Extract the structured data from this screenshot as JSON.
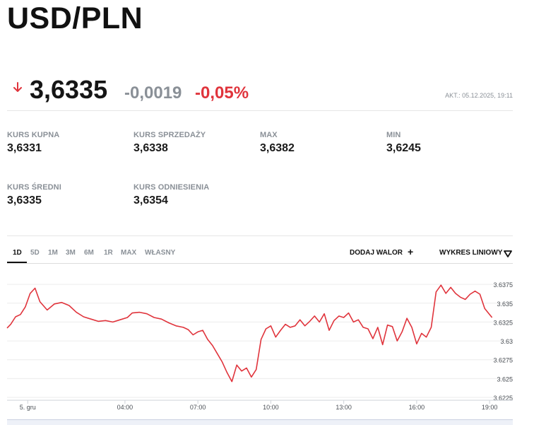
{
  "header": {
    "pair": "USD/PLN"
  },
  "quote": {
    "price": "3,6335",
    "change_abs": "-0,0019",
    "change_pct": "-0,05%",
    "updated": "AKT.: 05.12.2025, 19:11",
    "direction_icon": "arrow-down-icon",
    "down_color": "#e0343c"
  },
  "stats": [
    {
      "label": "KURS KUPNA",
      "value": "3,6331"
    },
    {
      "label": "KURS SPRZEDAŻY",
      "value": "3,6338"
    },
    {
      "label": "MAX",
      "value": "3,6382"
    },
    {
      "label": "MIN",
      "value": "3,6245"
    },
    {
      "label": "KURS ŚREDNI",
      "value": "3,6335"
    },
    {
      "label": "KURS ODNIESIENIA",
      "value": "3,6354"
    }
  ],
  "toolbar": {
    "ranges": [
      "1D",
      "5D",
      "1M",
      "3M",
      "6M",
      "1R",
      "MAX",
      "WŁASNY"
    ],
    "active_range": "1D",
    "add_asset": "DODAJ WALOR",
    "add_icon": "plus-icon",
    "chart_type": "WYKRES LINIOWY",
    "chart_type_icon": "triangle-down-icon"
  },
  "chart_data": {
    "type": "line",
    "x_tick_labels": [
      "5. gru",
      "04:00",
      "07:00",
      "10:00",
      "13:00",
      "16:00",
      "19:00"
    ],
    "x_ticks_hours": [
      0,
      4,
      7,
      10,
      13,
      16,
      19
    ],
    "xlim": [
      -0.85,
      19.2
    ],
    "y_tick_labels": [
      "3.6225",
      "3.625",
      "3.6275",
      "3.63",
      "3.6325",
      "3.635",
      "3.6375"
    ],
    "y_ticks": [
      3.6225,
      3.625,
      3.6275,
      3.63,
      3.6325,
      3.635,
      3.6375
    ],
    "ylim": [
      3.6225,
      3.6377
    ],
    "grid": true,
    "line_color": "#e0343c",
    "series": [
      {
        "x": [
          -0.85,
          -0.7,
          -0.5,
          -0.3,
          -0.1,
          0.1,
          0.3,
          0.5,
          0.8,
          1.1,
          1.4,
          1.7,
          2.0,
          2.3,
          2.6,
          2.9,
          3.2,
          3.5,
          3.8,
          4.1,
          4.3,
          4.6,
          4.9,
          5.2,
          5.5,
          5.8,
          6.1,
          6.4,
          6.6,
          6.8,
          7.0,
          7.2,
          7.4,
          7.6,
          7.8,
          8.0,
          8.2,
          8.4,
          8.6,
          8.8,
          9.0,
          9.2,
          9.4,
          9.6,
          9.8,
          10.0,
          10.2,
          10.4,
          10.6,
          10.8,
          11.0,
          11.2,
          11.4,
          11.6,
          11.8,
          12.0,
          12.2,
          12.4,
          12.6,
          12.8,
          13.0,
          13.2,
          13.4,
          13.6,
          13.8,
          14.0,
          14.2,
          14.4,
          14.6,
          14.8,
          15.0,
          15.2,
          15.4,
          15.6,
          15.8,
          16.0,
          16.2,
          16.4,
          16.6,
          16.8,
          17.0,
          17.2,
          17.4,
          17.6,
          17.8,
          18.0,
          18.2,
          18.4,
          18.6,
          18.8,
          19.0,
          19.1
        ],
        "y": [
          3.6317,
          3.6322,
          3.6332,
          3.6335,
          3.6345,
          3.6363,
          3.637,
          3.6352,
          3.6341,
          3.6349,
          3.6351,
          3.6347,
          3.6338,
          3.6332,
          3.6329,
          3.6326,
          3.6327,
          3.6325,
          3.6328,
          3.6331,
          3.6337,
          3.6338,
          3.6336,
          3.6331,
          3.6329,
          3.6324,
          3.632,
          3.6318,
          3.6315,
          3.6308,
          3.6312,
          3.6314,
          3.6302,
          3.6294,
          3.6283,
          3.6272,
          3.6258,
          3.6246,
          3.6268,
          3.626,
          3.6264,
          3.6252,
          3.6262,
          3.6302,
          3.6316,
          3.632,
          3.6305,
          3.6314,
          3.6322,
          3.6318,
          3.632,
          3.6328,
          3.632,
          3.6326,
          3.6333,
          3.6325,
          3.6336,
          3.6314,
          3.6327,
          3.6333,
          3.6331,
          3.6337,
          3.6325,
          3.6328,
          3.6318,
          3.6316,
          3.6303,
          3.6318,
          3.6295,
          3.6321,
          3.6319,
          3.63,
          3.6312,
          3.633,
          3.6318,
          3.6296,
          3.631,
          3.6305,
          3.6318,
          3.6365,
          3.6374,
          3.6363,
          3.6371,
          3.6363,
          3.6358,
          3.6355,
          3.6362,
          3.6366,
          3.6362,
          3.6343,
          3.6335,
          3.6331
        ]
      }
    ]
  }
}
